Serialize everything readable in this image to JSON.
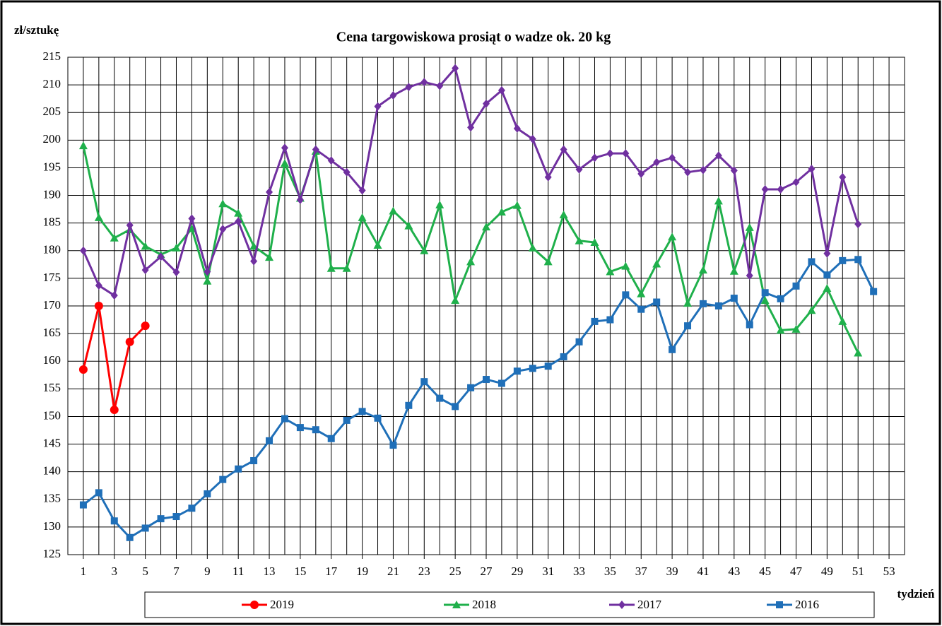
{
  "chart_data": {
    "type": "line",
    "title": "Cena targowiskowa prosiąt o wadze ok. 20 kg",
    "y_label": "zł/sztukę",
    "x_label": "tydzień",
    "x": [
      1,
      2,
      3,
      4,
      5,
      6,
      7,
      8,
      9,
      10,
      11,
      12,
      13,
      14,
      15,
      16,
      17,
      18,
      19,
      20,
      21,
      22,
      23,
      24,
      25,
      26,
      27,
      28,
      29,
      30,
      31,
      32,
      33,
      34,
      35,
      36,
      37,
      38,
      39,
      40,
      41,
      42,
      43,
      44,
      45,
      46,
      47,
      48,
      49,
      50,
      51,
      52,
      53
    ],
    "xlim": [
      0,
      54
    ],
    "xticks": [
      1,
      3,
      5,
      7,
      9,
      11,
      13,
      15,
      17,
      19,
      21,
      23,
      25,
      27,
      29,
      31,
      33,
      35,
      37,
      39,
      41,
      43,
      45,
      47,
      49,
      51,
      53
    ],
    "ylim": [
      125,
      215
    ],
    "yticks": [
      125,
      130,
      135,
      140,
      145,
      150,
      155,
      160,
      165,
      170,
      175,
      180,
      185,
      190,
      195,
      200,
      205,
      210,
      215
    ],
    "grid": true,
    "series": [
      {
        "name": "2019",
        "color": "#ff0000",
        "marker": "circle",
        "values": [
          158.5,
          170,
          151.2,
          163.5,
          166.4,
          null,
          null,
          null,
          null,
          null,
          null,
          null,
          null,
          null,
          null,
          null,
          null,
          null,
          null,
          null,
          null,
          null,
          null,
          null,
          null,
          null,
          null,
          null,
          null,
          null,
          null,
          null,
          null,
          null,
          null,
          null,
          null,
          null,
          null,
          null,
          null,
          null,
          null,
          null,
          null,
          null,
          null,
          null,
          null,
          null,
          null,
          null,
          null
        ]
      },
      {
        "name": "2018",
        "color": "#1fb04b",
        "marker": "triangle",
        "values": [
          199,
          186,
          182.3,
          183.8,
          180.8,
          179.3,
          180.5,
          184,
          174.5,
          188.5,
          186.8,
          180.8,
          178.8,
          195.8,
          189.5,
          198,
          176.8,
          176.8,
          186,
          181,
          187.2,
          184.5,
          180,
          188.3,
          171,
          178,
          184.3,
          187,
          188.2,
          180.5,
          178,
          186.5,
          181.8,
          181.5,
          176.2,
          177.2,
          172.2,
          177.6,
          182.5,
          170.5,
          176.5,
          189,
          176.3,
          184.2,
          171,
          165.6,
          165.8,
          169.2,
          173.2,
          167.2,
          161.5,
          null,
          null
        ]
      },
      {
        "name": "2017",
        "color": "#7030a0",
        "marker": "diamond",
        "values": [
          180,
          173.7,
          171.9,
          184.6,
          176.5,
          178.9,
          176.1,
          185.8,
          176.2,
          183.9,
          185.3,
          178.1,
          190.6,
          198.6,
          189.2,
          198.3,
          196.3,
          194.2,
          190.9,
          206.1,
          208.1,
          209.6,
          210.5,
          209.8,
          213,
          202.3,
          206.6,
          209,
          202.1,
          200.2,
          193.3,
          198.3,
          194.7,
          196.8,
          197.6,
          197.6,
          193.9,
          196,
          196.8,
          194.2,
          194.6,
          197.2,
          194.5,
          175.5,
          191.1,
          191.1,
          192.4,
          194.8,
          179.5,
          193.3,
          184.8,
          null,
          null
        ]
      },
      {
        "name": "2016",
        "color": "#1f6fb8",
        "marker": "square",
        "values": [
          134,
          136.2,
          131.1,
          128.1,
          129.8,
          131.5,
          131.9,
          133.4,
          136,
          138.6,
          140.5,
          142,
          145.6,
          149.6,
          148,
          147.6,
          146,
          149.3,
          150.9,
          149.7,
          144.8,
          152,
          156.3,
          153.3,
          151.8,
          155.2,
          156.7,
          156,
          158.2,
          158.7,
          159.1,
          160.8,
          163.5,
          167.2,
          167.5,
          172,
          169.4,
          170.7,
          162.1,
          166.4,
          170.4,
          170,
          171.4,
          166.6,
          172.4,
          171.3,
          173.6,
          178,
          175.6,
          178.2,
          178.4,
          172.6,
          null
        ]
      }
    ]
  }
}
